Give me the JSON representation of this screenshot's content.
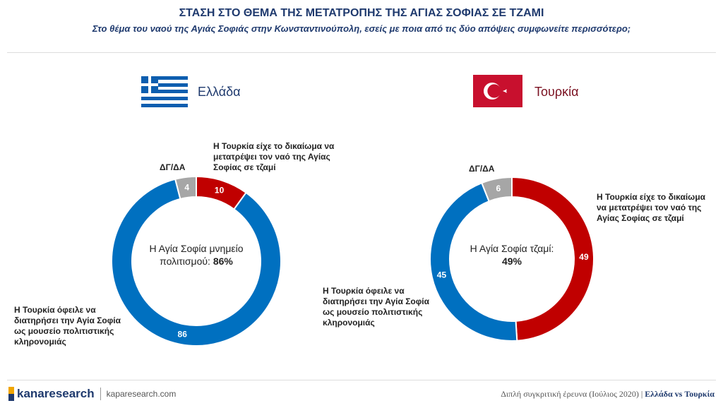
{
  "header": {
    "title": "ΣΤΑΣΗ ΣΤΟ ΘΕΜΑ ΤΗΣ ΜΕΤΑΤΡΟΠΗΣ ΤΗΣ ΑΓΙΑΣ ΣΟΦΙΑΣ ΣΕ ΤΖΑΜΙ",
    "subtitle": "Στο θέμα του ναού της Αγιάς Σοφιάς στην Κωνσταντινούπολη, εσείς με ποια από τις δύο απόψεις συμφωνείτε περισσότερο;"
  },
  "colors": {
    "convert": "#c00000",
    "museum": "#0070c0",
    "dk": "#a6a6a6"
  },
  "chart_data": [
    {
      "type": "pie",
      "variant": "donut",
      "country": "Ελλάδα",
      "center_text": "Η Αγία Σοφία μνημείο πολιτισμού:",
      "center_value": "86%",
      "categories": [
        "Η Τουρκία είχε το δικαίωμα να μετατρέψει τον ναό της Αγίας Σοφίας σε τζαμί",
        "Η Τουρκία όφειλε να διατηρήσει την Αγία Σοφία ως μουσείο πολιτιστικής κληρονομιάς",
        "ΔΓ/ΔΑ"
      ],
      "values": [
        10,
        86,
        4
      ]
    },
    {
      "type": "pie",
      "variant": "donut",
      "country": "Τουρκία",
      "center_text": "Η Αγία Σοφία τζαμί:",
      "center_value": "49%",
      "categories": [
        "Η Τουρκία είχε το δικαίωμα να μετατρέψει τον ναό της Αγίας Σοφίας σε τζαμί",
        "Η Τουρκία όφειλε να διατηρήσει την Αγία Σοφία ως μουσείο πολιτιστικής κληρονομιάς",
        "ΔΓ/ΔΑ"
      ],
      "values": [
        49,
        45,
        6
      ]
    }
  ],
  "footer": {
    "brand": "kanaresearch",
    "site": "kaparesearch.com",
    "survey": "Διπλή συγκριτική έρευνα (Ιούλιος 2020) |",
    "compare": "Ελλάδα vs Τουρκία"
  }
}
